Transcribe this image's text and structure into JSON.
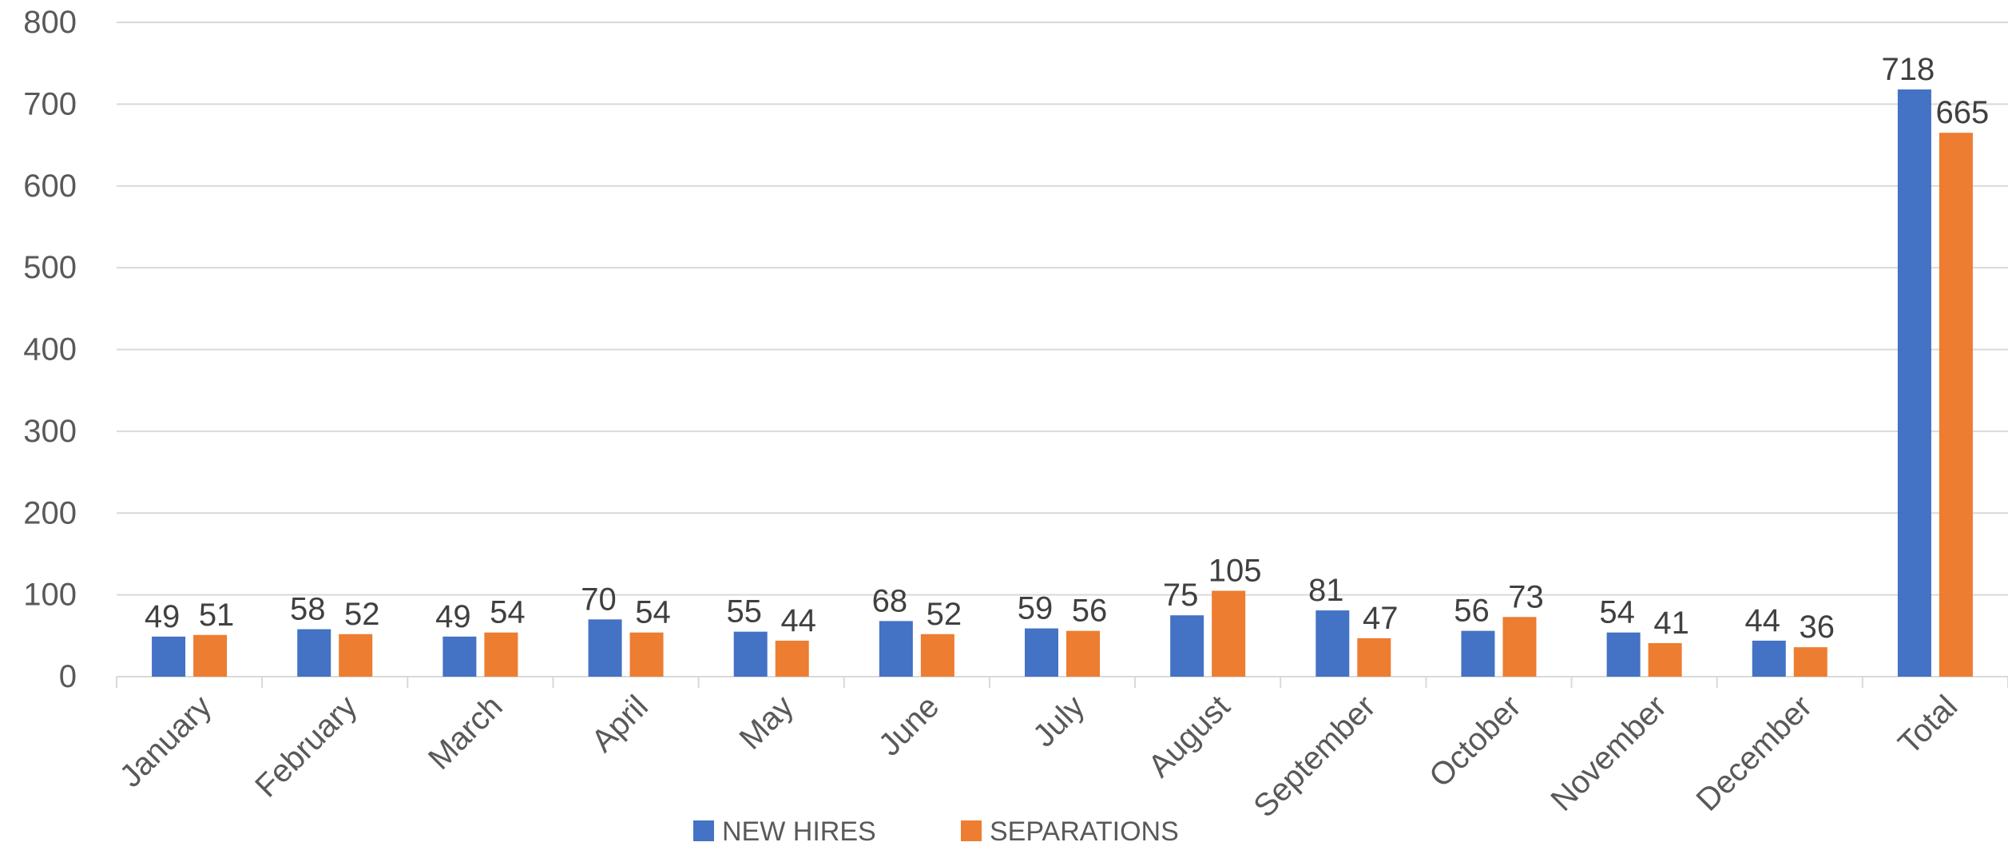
{
  "chart_data": {
    "type": "bar",
    "title": "",
    "xlabel": "",
    "ylabel": "",
    "categories": [
      "January",
      "February",
      "March",
      "April",
      "May",
      "June",
      "July",
      "August",
      "September",
      "October",
      "November",
      "December",
      "Total"
    ],
    "series": [
      {
        "name": "NEW HIRES",
        "color": "#4472C4",
        "values": [
          49,
          58,
          49,
          70,
          55,
          68,
          59,
          75,
          81,
          56,
          54,
          44,
          718
        ]
      },
      {
        "name": "SEPARATIONS",
        "color": "#ED7D31",
        "values": [
          51,
          52,
          54,
          54,
          44,
          52,
          56,
          105,
          47,
          73,
          41,
          36,
          665
        ]
      }
    ],
    "ylim": [
      0,
      800
    ],
    "yticks": [
      0,
      100,
      200,
      300,
      400,
      500,
      600,
      700,
      800
    ],
    "grid": true,
    "legend_position": "bottom"
  }
}
